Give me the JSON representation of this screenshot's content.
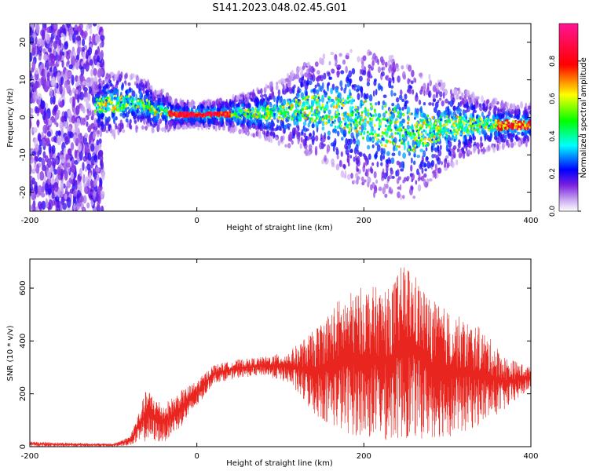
{
  "figure_title": "S141.2023.048.02.45.G01",
  "chart_data": [
    {
      "type": "heatmap",
      "xlabel": "Height of straight line (km)",
      "ylabel": "Frequency (Hz)",
      "xlim": [
        -200,
        400
      ],
      "ylim": [
        -25,
        25
      ],
      "x_ticks": [
        -200,
        0,
        200,
        400
      ],
      "y_ticks": [
        -20,
        -10,
        0,
        10,
        20
      ],
      "grid": false,
      "colorbar": {
        "label": "Normalized spectral amplitude",
        "range": [
          0.0,
          1.0
        ],
        "ticks": [
          "0.0",
          "0.2",
          "0.4",
          "0.6",
          "0.8"
        ],
        "colormap": [
          "#ffffff",
          "#8a2be2",
          "#0000ff",
          "#00ffff",
          "#00ff00",
          "#ffff00",
          "#ff0000",
          "#ff1493"
        ]
      },
      "ridge": [
        {
          "x": -120,
          "y": 3.0,
          "w": 2.5
        },
        {
          "x": -100,
          "y": 3.5,
          "w": 3.0
        },
        {
          "x": -80,
          "y": 4.0,
          "w": 2.5
        },
        {
          "x": -60,
          "y": 3.5,
          "w": 2.0
        },
        {
          "x": -50,
          "y": 1.5,
          "w": 1.5
        },
        {
          "x": -40,
          "y": 2.0,
          "w": 1.5
        },
        {
          "x": -30,
          "y": 0.8,
          "w": 0.8
        },
        {
          "x": 0,
          "y": 0.7,
          "w": 0.6
        },
        {
          "x": 30,
          "y": 0.8,
          "w": 0.8
        },
        {
          "x": 60,
          "y": 1.0,
          "w": 1.5
        },
        {
          "x": 100,
          "y": 1.5,
          "w": 3.0
        },
        {
          "x": 140,
          "y": 2.5,
          "w": 5.0
        },
        {
          "x": 180,
          "y": 1.0,
          "w": 7.0
        },
        {
          "x": 220,
          "y": -2.0,
          "w": 8.0
        },
        {
          "x": 260,
          "y": -4.0,
          "w": 7.0
        },
        {
          "x": 300,
          "y": -2.5,
          "w": 4.0
        },
        {
          "x": 340,
          "y": -2.0,
          "w": 2.5
        },
        {
          "x": 380,
          "y": -2.0,
          "w": 1.5
        },
        {
          "x": 400,
          "y": -2.0,
          "w": 1.5
        }
      ]
    },
    {
      "type": "line",
      "xlabel": "Height of straight line (km)",
      "ylabel": "SNR (10 * v/v)",
      "xlim": [
        -200,
        400
      ],
      "ylim": [
        0,
        710
      ],
      "x_ticks": [
        -200,
        0,
        200,
        400
      ],
      "y_ticks": [
        0,
        200,
        400,
        600
      ],
      "grid": false,
      "color": "#e8261f",
      "envelope": [
        {
          "x": -200,
          "lo": 0,
          "hi": 20
        },
        {
          "x": -150,
          "lo": 0,
          "hi": 15
        },
        {
          "x": -100,
          "lo": 0,
          "hi": 12
        },
        {
          "x": -80,
          "lo": 5,
          "hi": 40
        },
        {
          "x": -60,
          "lo": 20,
          "hi": 220
        },
        {
          "x": -40,
          "lo": 15,
          "hi": 160
        },
        {
          "x": -20,
          "lo": 70,
          "hi": 210
        },
        {
          "x": 0,
          "lo": 150,
          "hi": 250
        },
        {
          "x": 20,
          "lo": 240,
          "hi": 310
        },
        {
          "x": 50,
          "lo": 260,
          "hi": 330
        },
        {
          "x": 80,
          "lo": 270,
          "hi": 340
        },
        {
          "x": 110,
          "lo": 240,
          "hi": 360
        },
        {
          "x": 140,
          "lo": 120,
          "hi": 440
        },
        {
          "x": 170,
          "lo": 60,
          "hi": 560
        },
        {
          "x": 200,
          "lo": 30,
          "hi": 610
        },
        {
          "x": 230,
          "lo": 20,
          "hi": 600
        },
        {
          "x": 250,
          "lo": 30,
          "hi": 710
        },
        {
          "x": 280,
          "lo": 30,
          "hi": 560
        },
        {
          "x": 310,
          "lo": 40,
          "hi": 500
        },
        {
          "x": 340,
          "lo": 80,
          "hi": 450
        },
        {
          "x": 370,
          "lo": 140,
          "hi": 340
        },
        {
          "x": 400,
          "lo": 220,
          "hi": 300
        }
      ]
    }
  ]
}
